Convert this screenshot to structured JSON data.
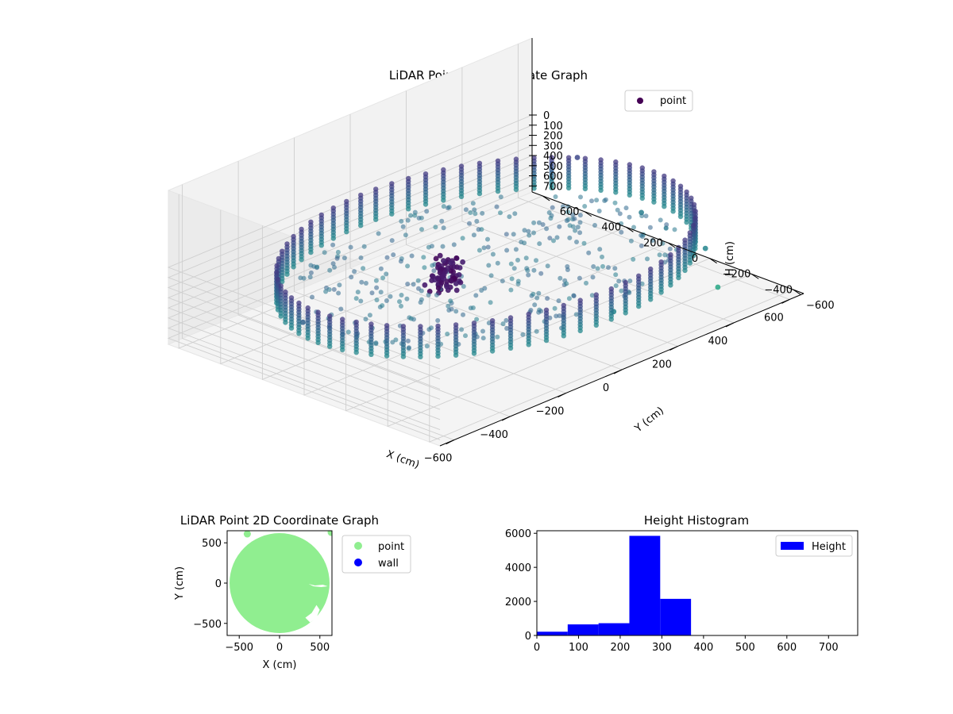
{
  "chart_data": [
    {
      "type": "scatter",
      "projection": "3d",
      "title": "LiDAR Point 3D Coordinate Graph",
      "xlabel": "X (cm)",
      "ylabel": "Y (cm)",
      "zlabel": "H (cm)",
      "xlim": [
        -650,
        650
      ],
      "ylim": [
        -650,
        650
      ],
      "zlim": [
        760,
        0
      ],
      "xticks": [
        -600,
        -400,
        -200,
        0,
        200,
        400,
        600
      ],
      "yticks": [
        -600,
        -400,
        -200,
        0,
        200,
        400,
        600
      ],
      "zticks": [
        0,
        100,
        200,
        300,
        400,
        500,
        600,
        700
      ],
      "colormap": "viridis",
      "legend": {
        "location": "upper right",
        "entries": [
          {
            "name": "point",
            "color": "#440154"
          }
        ]
      },
      "grid": true,
      "series": [
        {
          "name": "point",
          "shape": "ring wall",
          "radius": 600,
          "h_range": [
            0,
            300
          ],
          "description": "cylindrical wall of points (radius ~600 cm, heights ~0-300 cm)"
        },
        {
          "name": "point",
          "shape": "floor fill",
          "radius_range": [
            0,
            550
          ],
          "h_range": [
            250,
            300
          ],
          "description": "floor points inside ring"
        },
        {
          "name": "point",
          "shape": "pillar",
          "center": [
            -150,
            0
          ],
          "h_range": [
            0,
            300
          ]
        },
        {
          "name": "point",
          "shape": "outliers",
          "points": [
            [
              -520,
              180,
              330
            ],
            [
              600,
              60,
              450
            ],
            [
              560,
              -300,
              480
            ],
            [
              120,
              -450,
              480
            ],
            [
              470,
              -480,
              620
            ],
            [
              640,
              420,
              230
            ]
          ]
        }
      ]
    },
    {
      "type": "scatter",
      "title": "LiDAR Point 2D Coordinate Graph",
      "xlabel": "X (cm)",
      "ylabel": "Y (cm)",
      "xlim": [
        -650,
        650
      ],
      "ylim": [
        -650,
        650
      ],
      "xticks": [
        -500,
        0,
        500
      ],
      "yticks": [
        -500,
        0,
        500
      ],
      "legend": {
        "location": "outside right",
        "entries": [
          {
            "name": "point",
            "color": "#90ee90"
          },
          {
            "name": "wall",
            "color": "#0000ff"
          }
        ]
      },
      "series": [
        {
          "name": "point",
          "color": "#90ee90",
          "shape": "filled disc",
          "center": [
            0,
            0
          ],
          "radius": 620
        },
        {
          "name": "point",
          "color": "#90ee90",
          "points": [
            [
              -400,
              610
            ],
            [
              640,
              630
            ]
          ]
        }
      ]
    },
    {
      "type": "bar",
      "title": "Height Histogram",
      "xlabel": "",
      "ylabel": "",
      "xlim": [
        0,
        770
      ],
      "ylim": [
        0,
        6150
      ],
      "xticks": [
        0,
        100,
        200,
        300,
        400,
        500,
        600,
        700
      ],
      "yticks": [
        0,
        2000,
        4000,
        6000
      ],
      "legend": {
        "location": "upper right",
        "entries": [
          {
            "name": "Height",
            "color": "#0000ff"
          }
        ]
      },
      "color": "#0000ff",
      "bin_edges": [
        0,
        74,
        148,
        222,
        296,
        370,
        444,
        518,
        592,
        666,
        740
      ],
      "values": [
        220,
        650,
        720,
        5850,
        2150,
        0,
        0,
        0,
        0,
        0
      ]
    }
  ]
}
